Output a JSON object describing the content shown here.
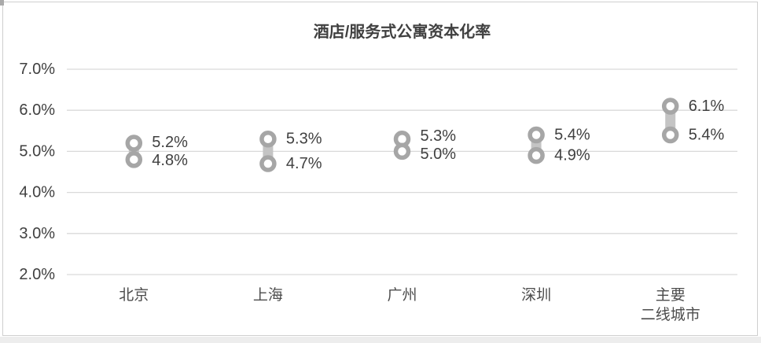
{
  "chart_data": {
    "type": "scatter",
    "subtype": "high-low-range-dumbbell",
    "title": "酒店/服务式公寓资本化率",
    "xlabel": "",
    "ylabel": "",
    "ylim": [
      2.0,
      7.0
    ],
    "ytick_step": 1.0,
    "grid": true,
    "legend": false,
    "yticks": [
      {
        "value": 7.0,
        "label": "7.0%"
      },
      {
        "value": 6.0,
        "label": "6.0%"
      },
      {
        "value": 5.0,
        "label": "5.0%"
      },
      {
        "value": 4.0,
        "label": "4.0%"
      },
      {
        "value": 3.0,
        "label": "3.0%"
      },
      {
        "value": 2.0,
        "label": "2.0%"
      }
    ],
    "categories": [
      {
        "label": "北京",
        "lines": [
          "北京"
        ]
      },
      {
        "label": "上海",
        "lines": [
          "上海"
        ]
      },
      {
        "label": "广州",
        "lines": [
          "广州"
        ]
      },
      {
        "label": "深圳",
        "lines": [
          "深圳"
        ]
      },
      {
        "label": "主要二线城市",
        "lines": [
          "主要",
          "二线城市"
        ]
      }
    ],
    "series": [
      {
        "name": "high",
        "values": [
          5.2,
          5.3,
          5.3,
          5.4,
          6.1
        ],
        "labels": [
          "5.2%",
          "5.3%",
          "5.3%",
          "5.4%",
          "6.1%"
        ]
      },
      {
        "name": "low",
        "values": [
          4.8,
          4.7,
          5.0,
          4.9,
          5.4
        ],
        "labels": [
          "4.8%",
          "4.7%",
          "5.0%",
          "4.9%",
          "5.4%"
        ]
      }
    ],
    "colors": {
      "marker_stroke": "#a6a6a6",
      "marker_fill": "#ffffff",
      "range_bar": "#c4c4c4",
      "gridline": "#d9d9d9",
      "label_text": "#404040",
      "axis_text": "#4d4d4d",
      "title_text": "#404040",
      "frame_border": "#cfcfcf"
    }
  }
}
